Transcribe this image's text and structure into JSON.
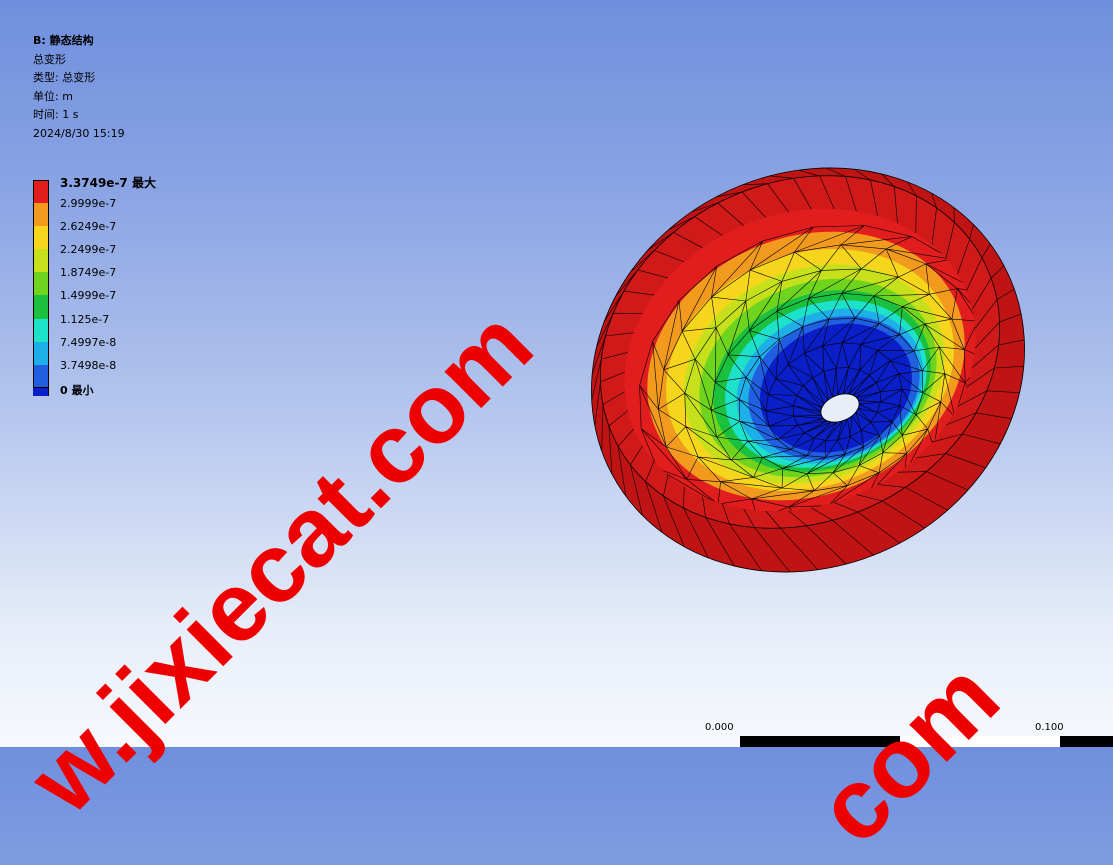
{
  "info": {
    "title": "B: 静态结构",
    "line1": "总变形",
    "line2": "类型: 总变形",
    "line3": "单位: m",
    "line4": "时间: 1 s",
    "line5": "2024/8/30 15:19"
  },
  "legend": {
    "labels": [
      "3.3749e-7 最大",
      "2.9999e-7",
      "2.6249e-7",
      "2.2499e-7",
      "1.8749e-7",
      "1.4999e-7",
      "1.125e-7",
      "7.4997e-8",
      "3.7498e-8",
      "0 最小"
    ],
    "colors": [
      "#e21d1d",
      "#f29a1d",
      "#f5d61d",
      "#c6e11b",
      "#6fd41e",
      "#1bc03f",
      "#1de1c8",
      "#1eaee8",
      "#1f5fe0",
      "#0b1fc9"
    ]
  },
  "scale": {
    "left_label": "0.000",
    "right_label": "0.100"
  },
  "watermark": {
    "main": "w.jixiecat.com",
    "second": "com"
  },
  "model": {
    "outer_color": "#c21616",
    "rim_color": "#d41c1c",
    "hole_color": "#e8eef8"
  }
}
